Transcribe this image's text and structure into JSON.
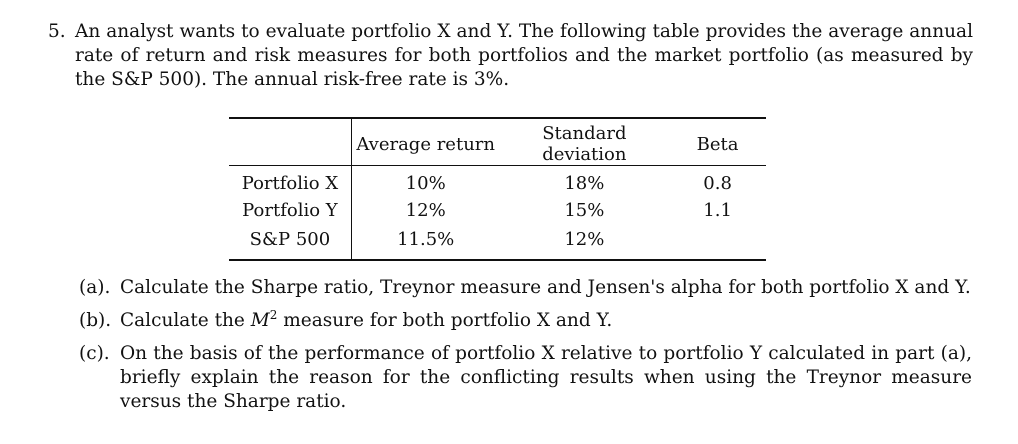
{
  "problem": {
    "number": "5.",
    "statement": "An analyst wants to evaluate portfolio X and Y. The following table provides the average annual rate of return and risk measures for both portfolios and the market portfolio (as measured by the S&P 500). The annual risk-free rate is 3%."
  },
  "table": {
    "headers": [
      "",
      "Average return",
      "Standard deviation",
      "Beta"
    ],
    "rows": [
      {
        "name": "Portfolio X",
        "avg": "10%",
        "sd": "18%",
        "beta": "0.8"
      },
      {
        "name": "Portfolio Y",
        "avg": "12%",
        "sd": "15%",
        "beta": "1.1"
      },
      {
        "name": "S&P 500",
        "avg": "11.5%",
        "sd": "12%",
        "beta": ""
      }
    ]
  },
  "questions": [
    {
      "label": "(a).",
      "text": "Calculate the Sharpe ratio, Treynor measure and Jensen's alpha for both portfolio X and Y."
    },
    {
      "label": "(b).",
      "text_before": "Calculate the ",
      "symbol": "M",
      "superscript": "2",
      "text_after": " measure for both portfolio X and Y."
    },
    {
      "label": "(c).",
      "text": "On the basis of the performance of portfolio X relative to portfolio Y calculated in part (a), briefly explain the reason for the conflicting results when using the Treynor measure versus the Sharpe ratio."
    }
  ]
}
